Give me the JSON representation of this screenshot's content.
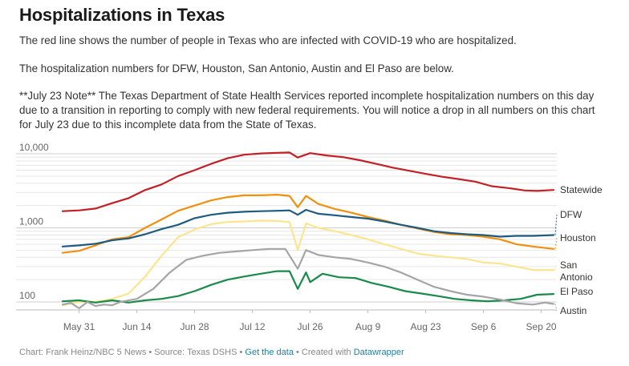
{
  "page": {
    "title": "Hospitalizations in Texas",
    "description": [
      "The red line shows the number of people in Texas who are infected with COVID-19 who are hospitalized.",
      "The hospitalization numbers for DFW, Houston, San Antonio, Austin and El Paso are below.",
      "**July 23 Note** The Texas Department of State Health Services reported incomplete hospitalization numbers on this day due to a transition in reporting to comply with new federal requirements. You will notice a drop in all numbers on this chart for July 23 due to this incomplete data from the State of Texas."
    ],
    "footer": {
      "chart_credit": "Chart: Frank Heinz/NBC 5 News",
      "sep1": " • ",
      "source": "Source: Texas DSHS",
      "sep2": " • ",
      "get_data": "Get the data",
      "sep3": " • ",
      "created_with": "Created with ",
      "datawrapper": "Datawrapper"
    }
  },
  "chart_data": {
    "type": "line",
    "title": "Hospitalizations in Texas",
    "y_scale": "log",
    "ylim": [
      100,
      10000
    ],
    "y_ticks": [
      {
        "value": 100,
        "label": "100"
      },
      {
        "value": 1000,
        "label": "1,000"
      },
      {
        "value": 10000,
        "label": "10,000"
      }
    ],
    "x_start": "2020-05-27",
    "x_end": "2020-09-23",
    "x_ticks": [
      {
        "date": "2020-05-31",
        "label": "May 31"
      },
      {
        "date": "2020-06-14",
        "label": "Jun 14"
      },
      {
        "date": "2020-06-28",
        "label": "Jun 28"
      },
      {
        "date": "2020-07-12",
        "label": "Jul 12"
      },
      {
        "date": "2020-07-26",
        "label": "Jul 26"
      },
      {
        "date": "2020-08-09",
        "label": "Aug 9"
      },
      {
        "date": "2020-08-23",
        "label": "Aug 23"
      },
      {
        "date": "2020-09-06",
        "label": "Sep 6"
      },
      {
        "date": "2020-09-20",
        "label": "Sep 20"
      }
    ],
    "grid": true,
    "legend": "direct labels at line ends",
    "series": [
      {
        "name": "Statewide",
        "color": "#c32026",
        "points": [
          [
            "2020-05-27",
            1680
          ],
          [
            "2020-05-31",
            1720
          ],
          [
            "2020-06-04",
            1820
          ],
          [
            "2020-06-08",
            2150
          ],
          [
            "2020-06-12",
            2520
          ],
          [
            "2020-06-16",
            3240
          ],
          [
            "2020-06-20",
            3850
          ],
          [
            "2020-06-24",
            5000
          ],
          [
            "2020-06-28",
            6000
          ],
          [
            "2020-07-02",
            7300
          ],
          [
            "2020-07-06",
            8700
          ],
          [
            "2020-07-10",
            9700
          ],
          [
            "2020-07-14",
            10100
          ],
          [
            "2020-07-18",
            10300
          ],
          [
            "2020-07-21",
            10400
          ],
          [
            "2020-07-23",
            8900
          ],
          [
            "2020-07-26",
            10200
          ],
          [
            "2020-07-30",
            9500
          ],
          [
            "2020-08-03",
            9000
          ],
          [
            "2020-08-07",
            8200
          ],
          [
            "2020-08-11",
            7300
          ],
          [
            "2020-08-15",
            6500
          ],
          [
            "2020-08-19",
            5900
          ],
          [
            "2020-08-23",
            5350
          ],
          [
            "2020-08-27",
            4900
          ],
          [
            "2020-08-31",
            4550
          ],
          [
            "2020-09-04",
            4200
          ],
          [
            "2020-09-08",
            3650
          ],
          [
            "2020-09-12",
            3450
          ],
          [
            "2020-09-16",
            3200
          ],
          [
            "2020-09-19",
            3150
          ],
          [
            "2020-09-23",
            3250
          ]
        ]
      },
      {
        "name": "Houston",
        "color": "#f0900f",
        "points": [
          [
            "2020-05-27",
            460
          ],
          [
            "2020-05-31",
            490
          ],
          [
            "2020-06-04",
            580
          ],
          [
            "2020-06-08",
            700
          ],
          [
            "2020-06-12",
            750
          ],
          [
            "2020-06-16",
            1000
          ],
          [
            "2020-06-20",
            1300
          ],
          [
            "2020-06-24",
            1700
          ],
          [
            "2020-06-28",
            2000
          ],
          [
            "2020-07-02",
            2350
          ],
          [
            "2020-07-06",
            2600
          ],
          [
            "2020-07-10",
            2750
          ],
          [
            "2020-07-14",
            2750
          ],
          [
            "2020-07-18",
            2800
          ],
          [
            "2020-07-21",
            2700
          ],
          [
            "2020-07-23",
            1900
          ],
          [
            "2020-07-25",
            2700
          ],
          [
            "2020-07-28",
            2100
          ],
          [
            "2020-08-01",
            1800
          ],
          [
            "2020-08-05",
            1600
          ],
          [
            "2020-08-09",
            1400
          ],
          [
            "2020-08-13",
            1250
          ],
          [
            "2020-08-17",
            1100
          ],
          [
            "2020-08-21",
            980
          ],
          [
            "2020-08-25",
            880
          ],
          [
            "2020-08-29",
            820
          ],
          [
            "2020-09-02",
            800
          ],
          [
            "2020-09-06",
            760
          ],
          [
            "2020-09-10",
            700
          ],
          [
            "2020-09-14",
            600
          ],
          [
            "2020-09-18",
            560
          ],
          [
            "2020-09-23",
            520
          ]
        ]
      },
      {
        "name": "DFW",
        "color": "#1e5b80",
        "points": [
          [
            "2020-05-27",
            560
          ],
          [
            "2020-05-31",
            580
          ],
          [
            "2020-06-04",
            610
          ],
          [
            "2020-06-08",
            680
          ],
          [
            "2020-06-12",
            720
          ],
          [
            "2020-06-16",
            820
          ],
          [
            "2020-06-20",
            960
          ],
          [
            "2020-06-24",
            1100
          ],
          [
            "2020-06-28",
            1350
          ],
          [
            "2020-07-02",
            1500
          ],
          [
            "2020-07-06",
            1600
          ],
          [
            "2020-07-10",
            1650
          ],
          [
            "2020-07-14",
            1680
          ],
          [
            "2020-07-18",
            1700
          ],
          [
            "2020-07-21",
            1720
          ],
          [
            "2020-07-23",
            1500
          ],
          [
            "2020-07-25",
            1750
          ],
          [
            "2020-07-28",
            1550
          ],
          [
            "2020-08-01",
            1480
          ],
          [
            "2020-08-05",
            1400
          ],
          [
            "2020-08-09",
            1330
          ],
          [
            "2020-08-13",
            1220
          ],
          [
            "2020-08-17",
            1100
          ],
          [
            "2020-08-21",
            1000
          ],
          [
            "2020-08-25",
            900
          ],
          [
            "2020-08-29",
            850
          ],
          [
            "2020-09-02",
            820
          ],
          [
            "2020-09-06",
            800
          ],
          [
            "2020-09-10",
            760
          ],
          [
            "2020-09-14",
            780
          ],
          [
            "2020-09-18",
            780
          ],
          [
            "2020-09-23",
            800
          ]
        ]
      },
      {
        "name": "San Antonio",
        "color": "#fce58e",
        "points": [
          [
            "2020-05-27",
            90
          ],
          [
            "2020-05-31",
            100
          ],
          [
            "2020-06-04",
            100
          ],
          [
            "2020-06-08",
            110
          ],
          [
            "2020-06-12",
            130
          ],
          [
            "2020-06-16",
            220
          ],
          [
            "2020-06-20",
            420
          ],
          [
            "2020-06-24",
            750
          ],
          [
            "2020-06-28",
            950
          ],
          [
            "2020-07-02",
            1120
          ],
          [
            "2020-07-06",
            1200
          ],
          [
            "2020-07-10",
            1220
          ],
          [
            "2020-07-14",
            1250
          ],
          [
            "2020-07-18",
            1240
          ],
          [
            "2020-07-21",
            1200
          ],
          [
            "2020-07-23",
            500
          ],
          [
            "2020-07-25",
            1150
          ],
          [
            "2020-07-28",
            1000
          ],
          [
            "2020-08-01",
            900
          ],
          [
            "2020-08-05",
            800
          ],
          [
            "2020-08-09",
            700
          ],
          [
            "2020-08-13",
            600
          ],
          [
            "2020-08-17",
            520
          ],
          [
            "2020-08-21",
            450
          ],
          [
            "2020-08-25",
            420
          ],
          [
            "2020-08-29",
            400
          ],
          [
            "2020-09-02",
            380
          ],
          [
            "2020-09-06",
            340
          ],
          [
            "2020-09-10",
            330
          ],
          [
            "2020-09-14",
            300
          ],
          [
            "2020-09-18",
            270
          ],
          [
            "2020-09-23",
            270
          ]
        ]
      },
      {
        "name": "El Paso",
        "color": "#1a8a4a",
        "points": [
          [
            "2020-05-27",
            102
          ],
          [
            "2020-05-31",
            105
          ],
          [
            "2020-06-04",
            98
          ],
          [
            "2020-06-08",
            105
          ],
          [
            "2020-06-12",
            98
          ],
          [
            "2020-06-16",
            105
          ],
          [
            "2020-06-20",
            110
          ],
          [
            "2020-06-24",
            120
          ],
          [
            "2020-06-28",
            140
          ],
          [
            "2020-07-02",
            170
          ],
          [
            "2020-07-06",
            200
          ],
          [
            "2020-07-10",
            220
          ],
          [
            "2020-07-14",
            240
          ],
          [
            "2020-07-18",
            260
          ],
          [
            "2020-07-21",
            260
          ],
          [
            "2020-07-23",
            150
          ],
          [
            "2020-07-25",
            250
          ],
          [
            "2020-07-26",
            185
          ],
          [
            "2020-07-29",
            240
          ],
          [
            "2020-08-02",
            215
          ],
          [
            "2020-08-06",
            210
          ],
          [
            "2020-08-10",
            180
          ],
          [
            "2020-08-14",
            160
          ],
          [
            "2020-08-18",
            140
          ],
          [
            "2020-08-22",
            130
          ],
          [
            "2020-08-26",
            120
          ],
          [
            "2020-08-30",
            110
          ],
          [
            "2020-09-03",
            105
          ],
          [
            "2020-09-07",
            102
          ],
          [
            "2020-09-11",
            105
          ],
          [
            "2020-09-15",
            110
          ],
          [
            "2020-09-19",
            125
          ],
          [
            "2020-09-23",
            128
          ]
        ]
      },
      {
        "name": "Austin",
        "color": "#a5a5a5",
        "points": [
          [
            "2020-05-27",
            92
          ],
          [
            "2020-05-29",
            97
          ],
          [
            "2020-05-31",
            82
          ],
          [
            "2020-06-02",
            100
          ],
          [
            "2020-06-04",
            88
          ],
          [
            "2020-06-06",
            92
          ],
          [
            "2020-06-08",
            90
          ],
          [
            "2020-06-10",
            100
          ],
          [
            "2020-06-14",
            110
          ],
          [
            "2020-06-18",
            150
          ],
          [
            "2020-06-22",
            250
          ],
          [
            "2020-06-26",
            370
          ],
          [
            "2020-06-30",
            420
          ],
          [
            "2020-07-04",
            460
          ],
          [
            "2020-07-08",
            480
          ],
          [
            "2020-07-12",
            500
          ],
          [
            "2020-07-16",
            520
          ],
          [
            "2020-07-20",
            520
          ],
          [
            "2020-07-23",
            280
          ],
          [
            "2020-07-25",
            500
          ],
          [
            "2020-07-28",
            430
          ],
          [
            "2020-08-01",
            400
          ],
          [
            "2020-08-05",
            380
          ],
          [
            "2020-08-09",
            340
          ],
          [
            "2020-08-13",
            300
          ],
          [
            "2020-08-17",
            250
          ],
          [
            "2020-08-21",
            200
          ],
          [
            "2020-08-25",
            160
          ],
          [
            "2020-08-29",
            140
          ],
          [
            "2020-09-02",
            125
          ],
          [
            "2020-09-06",
            118
          ],
          [
            "2020-09-10",
            108
          ],
          [
            "2020-09-14",
            96
          ],
          [
            "2020-09-18",
            92
          ],
          [
            "2020-09-21",
            98
          ],
          [
            "2020-09-23",
            94
          ]
        ]
      }
    ]
  }
}
